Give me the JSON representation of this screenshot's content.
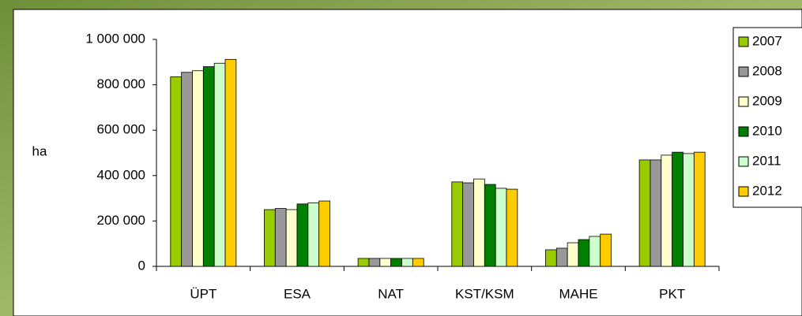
{
  "chart_data": {
    "type": "bar",
    "y_label": "ha",
    "categories": [
      "ÜPT",
      "ESA",
      "NAT",
      "KST/KSM",
      "MAHE",
      "PKT"
    ],
    "series": [
      {
        "name": "2007",
        "color": "#99cc00",
        "values": [
          835000,
          250000,
          35000,
          372000,
          73000,
          469000
        ]
      },
      {
        "name": "2008",
        "color": "#999999",
        "values": [
          855000,
          255000,
          35000,
          368000,
          80000,
          469000
        ]
      },
      {
        "name": "2009",
        "color": "#ffffcc",
        "values": [
          862000,
          250000,
          35000,
          385000,
          104000,
          490000
        ]
      },
      {
        "name": "2010",
        "color": "#008000",
        "values": [
          880000,
          275000,
          35000,
          361000,
          118000,
          503000
        ]
      },
      {
        "name": "2011",
        "color": "#ccffcc",
        "values": [
          895000,
          280000,
          35000,
          344000,
          132000,
          497000
        ]
      },
      {
        "name": "2012",
        "color": "#ffcc00",
        "values": [
          912000,
          288000,
          35000,
          340000,
          142000,
          503000
        ]
      }
    ],
    "ylim": [
      0,
      1000000
    ],
    "yticks": [
      0,
      {
        "value": 200000,
        "label": "200 000"
      },
      {
        "value": 400000,
        "label": "400 000"
      },
      {
        "value": 600000,
        "label": "600 000"
      },
      {
        "value": 800000,
        "label": "800 000"
      },
      {
        "value": 1000000,
        "label": "1 000 000"
      }
    ],
    "legend": "right"
  }
}
